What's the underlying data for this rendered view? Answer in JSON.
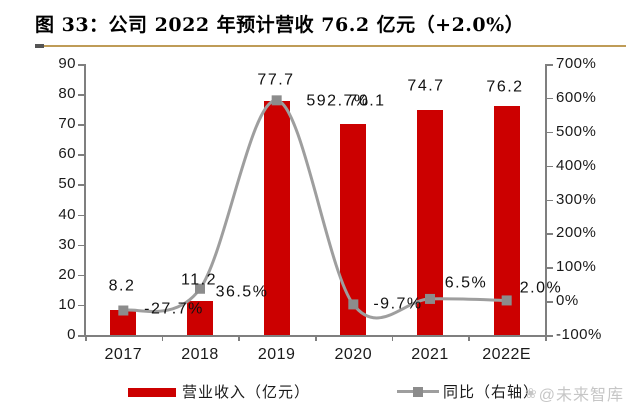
{
  "figure": {
    "title": "图 33：公司 2022 年预计营收 76.2 亿元（+2.0%）",
    "watermark": "@未来智库",
    "watermark_icon": "❀"
  },
  "legend": {
    "revenue_label": "营业收入（亿元）",
    "yoy_label": "同比（右轴）"
  },
  "colors": {
    "bar": "#cc0000",
    "line": "#9e9e9e",
    "marker": "#8c8c8c",
    "axis": "#7f7f7f",
    "title_underline": "#bf9c57",
    "watermark": "#c6c6c6",
    "label_text": "#111111"
  },
  "chart_data": {
    "type": "bar",
    "subtype": "bar+line combo, dual axis",
    "categories": [
      "2017",
      "2018",
      "2019",
      "2020",
      "2021",
      "2022E"
    ],
    "series": [
      {
        "name": "营业收入（亿元）",
        "type": "bar",
        "axis": "left",
        "values": [
          8.2,
          11.2,
          77.7,
          70.1,
          74.7,
          76.2
        ],
        "labels": [
          "8.2",
          "11.2",
          "77.7",
          "70.1",
          "74.7",
          "76.2"
        ]
      },
      {
        "name": "同比（右轴）",
        "type": "line",
        "axis": "right",
        "values": [
          -27.7,
          36.5,
          592.7,
          -9.7,
          6.5,
          2.0
        ],
        "labels": [
          "-27.7%",
          "36.5%",
          "592.7%",
          "-9.7%",
          "6.5%",
          "2.0%"
        ]
      }
    ],
    "left_axis": {
      "min": 0,
      "max": 90,
      "step": 10,
      "ticks": [
        "90",
        "80",
        "70",
        "60",
        "50",
        "40",
        "30",
        "20",
        "10",
        "0"
      ]
    },
    "right_axis": {
      "min": -100,
      "max": 700,
      "step": 100,
      "ticks": [
        "700%",
        "600%",
        "500%",
        "400%",
        "300%",
        "200%",
        "100%",
        "0%",
        "-100%"
      ]
    },
    "grid": false,
    "legend_position": "bottom"
  }
}
